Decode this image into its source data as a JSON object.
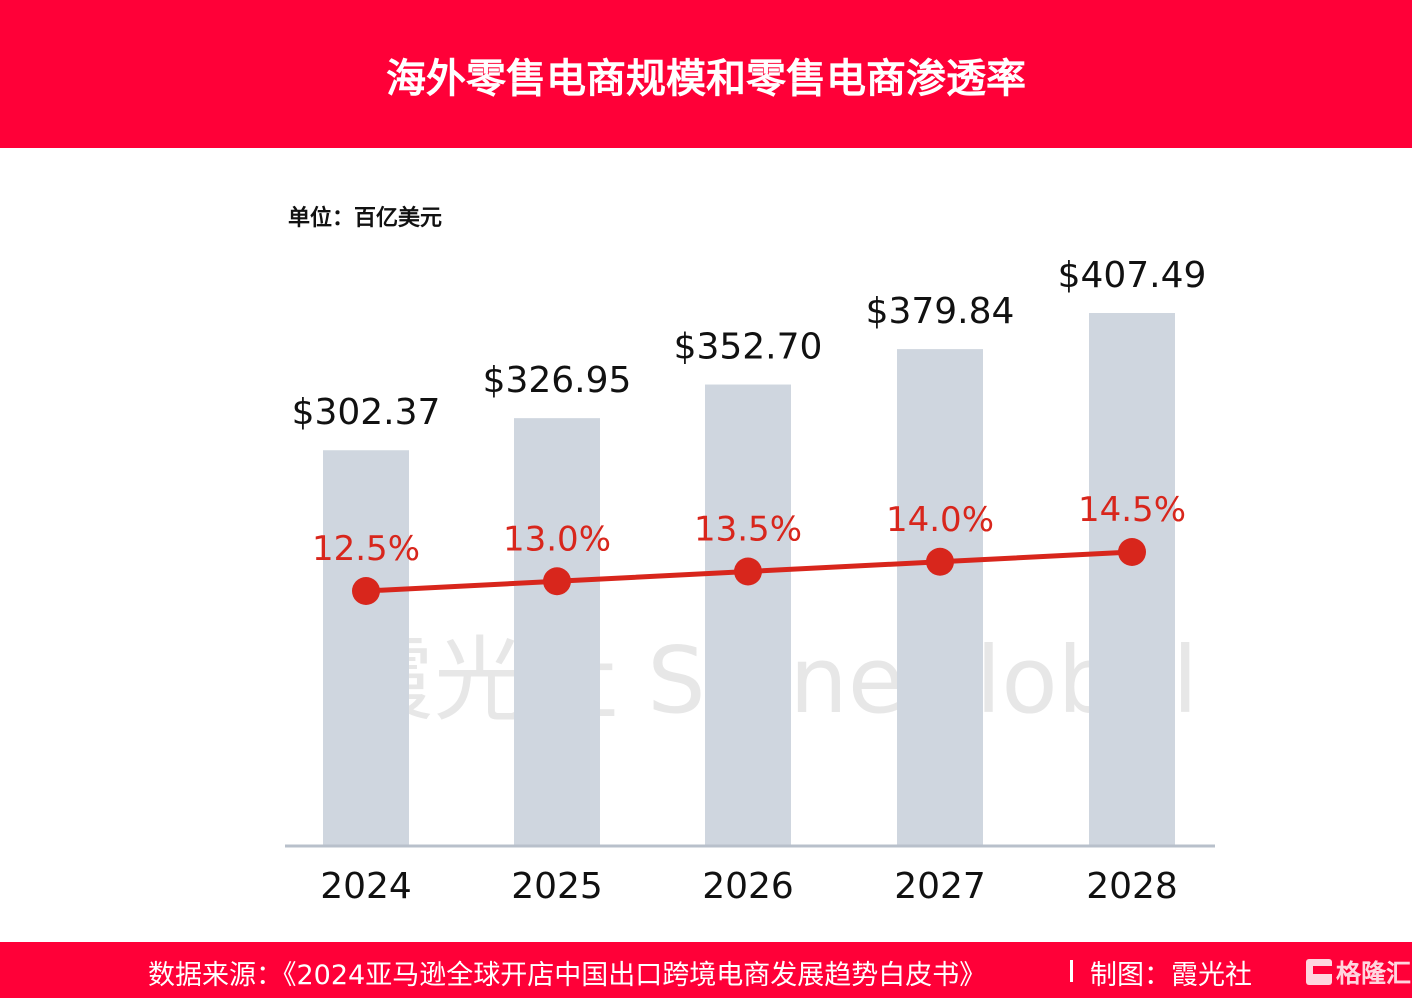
{
  "header": {
    "title": "海外零售电商规模和零售电商渗透率"
  },
  "unit_label": "单位：百亿美元",
  "watermark": "霞光社 ShineGlobal",
  "footer": {
    "source": "数据来源：《2024亚马逊全球开店中国出口跨境电商发展趋势白皮书》",
    "credit": "制图：霞光社",
    "logo": "格隆汇"
  },
  "chart_data": {
    "type": "bar+line",
    "categories": [
      "2024",
      "2025",
      "2026",
      "2027",
      "2028"
    ],
    "series": [
      {
        "type": "bar",
        "values": [
          302.37,
          326.95,
          352.7,
          379.84,
          407.49
        ],
        "labels": [
          "$302.37",
          "$326.95",
          "$352.70",
          "$379.84",
          "$407.49"
        ],
        "color": "#cfd6df"
      },
      {
        "type": "line",
        "values": [
          12.5,
          13.0,
          13.5,
          14.0,
          14.5
        ],
        "labels": [
          "12.5%",
          "13.0%",
          "13.5%",
          "14.0%",
          "14.5%"
        ],
        "color": "#d8261c"
      }
    ],
    "grid": false
  }
}
